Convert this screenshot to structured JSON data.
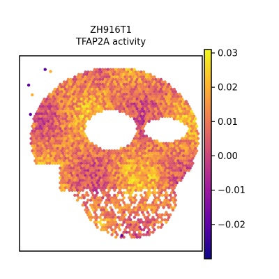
{
  "chart_data": {
    "type": "scatter",
    "title": "ZH916T1",
    "subtitle": "TFAP2A activity",
    "xlabel": "",
    "ylabel": "",
    "grid": false,
    "legend": "none",
    "colormap": "plasma",
    "colorbar": {
      "position": "right",
      "range": [
        -0.03,
        0.031
      ],
      "ticks": [
        -0.02,
        -0.01,
        0.0,
        0.01,
        0.02,
        0.03
      ],
      "tick_labels": [
        "−0.02",
        "−0.01",
        "0.00",
        "0.01",
        "0.02",
        "0.03"
      ]
    },
    "palette": [
      "#0d0887",
      "#5c01a6",
      "#9c179e",
      "#cc4778",
      "#ed7953",
      "#fdb42f",
      "#f0f921"
    ],
    "note_values": "per-spot activity values; spatial spot coordinates are in tissue units (0-100 square)",
    "x": [],
    "y": [],
    "values": []
  }
}
